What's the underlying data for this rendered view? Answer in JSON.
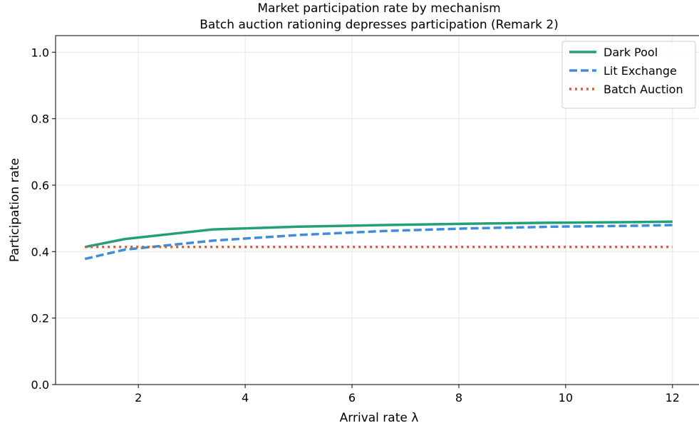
{
  "chart_data": {
    "type": "line",
    "title": "Market participation rate by mechanism",
    "subtitle": "Batch auction rationing depresses participation (Remark 2)",
    "xlabel": "Arrival rate λ",
    "ylabel": "Participation rate",
    "xlim": [
      0.45,
      12.55
    ],
    "ylim": [
      0.0,
      1.05
    ],
    "xticks": [
      2,
      4,
      6,
      8,
      10,
      12
    ],
    "yticks": [
      0.0,
      0.2,
      0.4,
      0.6,
      0.8,
      1.0
    ],
    "xtick_labels": [
      "2",
      "4",
      "6",
      "8",
      "10",
      "12"
    ],
    "ytick_labels": [
      "0.0",
      "0.2",
      "0.4",
      "0.6",
      "0.8",
      "1.0"
    ],
    "grid": true,
    "legend_position": "top-right",
    "series": [
      {
        "name": "Dark Pool",
        "color": "#23a075",
        "style": "solid",
        "x": [
          1.0,
          1.75,
          3.4,
          5.0,
          6.6,
          8.2,
          9.8,
          11.4,
          12.0
        ],
        "y": [
          0.414,
          0.438,
          0.467,
          0.475,
          0.48,
          0.484,
          0.487,
          0.489,
          0.49
        ]
      },
      {
        "name": "Lit Exchange",
        "color": "#3e8ddd",
        "style": "dashed",
        "x": [
          1.0,
          1.75,
          3.4,
          5.0,
          6.6,
          8.2,
          9.8,
          11.4,
          12.0
        ],
        "y": [
          0.378,
          0.406,
          0.433,
          0.45,
          0.462,
          0.47,
          0.475,
          0.478,
          0.48
        ]
      },
      {
        "name": "Batch Auction",
        "color": "#e05a2c",
        "style": "dotted",
        "x": [
          1.0,
          12.0
        ],
        "y": [
          0.414,
          0.414
        ]
      }
    ]
  }
}
